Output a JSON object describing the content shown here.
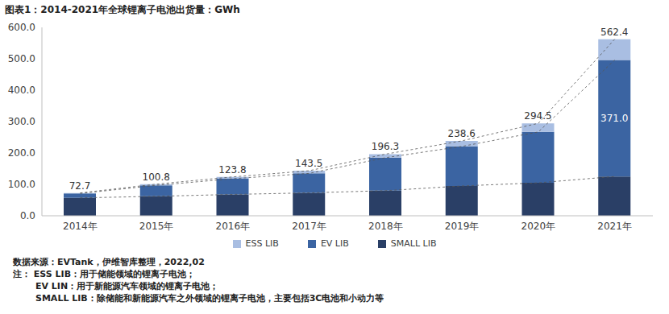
{
  "chart_data": {
    "type": "bar",
    "title": "图表1：2014-2021年全球锂离子电池出货量：GWh",
    "categories": [
      "2014年",
      "2015年",
      "2016年",
      "2017年",
      "2018年",
      "2019年",
      "2020年",
      "2021年"
    ],
    "series": [
      {
        "name": "ESS LIB",
        "color": "#a9bee2",
        "values": [
          1.7,
          3.8,
          5.8,
          8.5,
          11.3,
          17.6,
          27.5,
          66.3
        ]
      },
      {
        "name": "EV LIB",
        "color": "#3b64a2",
        "values": [
          14.0,
          35.0,
          50.0,
          62.0,
          105.0,
          126.0,
          162.0,
          371.0
        ],
        "value_labels": [
          null,
          null,
          null,
          null,
          null,
          null,
          null,
          "371.0"
        ]
      },
      {
        "name": "SMALL LIB",
        "color": "#2a3f66",
        "values": [
          57.0,
          62.0,
          68.0,
          73.0,
          80.0,
          95.0,
          105.0,
          125.1
        ]
      }
    ],
    "totals": [
      72.7,
      100.8,
      123.8,
      143.5,
      196.3,
      238.6,
      294.5,
      562.4
    ],
    "stacked": true,
    "data_labels": true,
    "ylim": [
      0,
      600
    ],
    "yticks": [
      {
        "value": 0,
        "label": "0.0"
      },
      {
        "value": 100,
        "label": "100.0"
      },
      {
        "value": 200,
        "label": "200.0"
      },
      {
        "value": 300,
        "label": "300.0"
      },
      {
        "value": 400,
        "label": "400.0"
      },
      {
        "value": 500,
        "label": "500.0"
      },
      {
        "value": 600,
        "label": "600.0"
      }
    ],
    "grid": false,
    "legend": "bottom",
    "source": "数据来源：EVTank，伊维智库整理，2022,02",
    "notes": [
      "注： ESS LIB：用于储能领域的锂离子电池；",
      "EV LIN：用于新能源汽车领域的锂离子电池；",
      "SMALL LIB：除储能和新能源汽车之外领域的锂离子电池，主要包括3C电池和小动力等"
    ]
  }
}
